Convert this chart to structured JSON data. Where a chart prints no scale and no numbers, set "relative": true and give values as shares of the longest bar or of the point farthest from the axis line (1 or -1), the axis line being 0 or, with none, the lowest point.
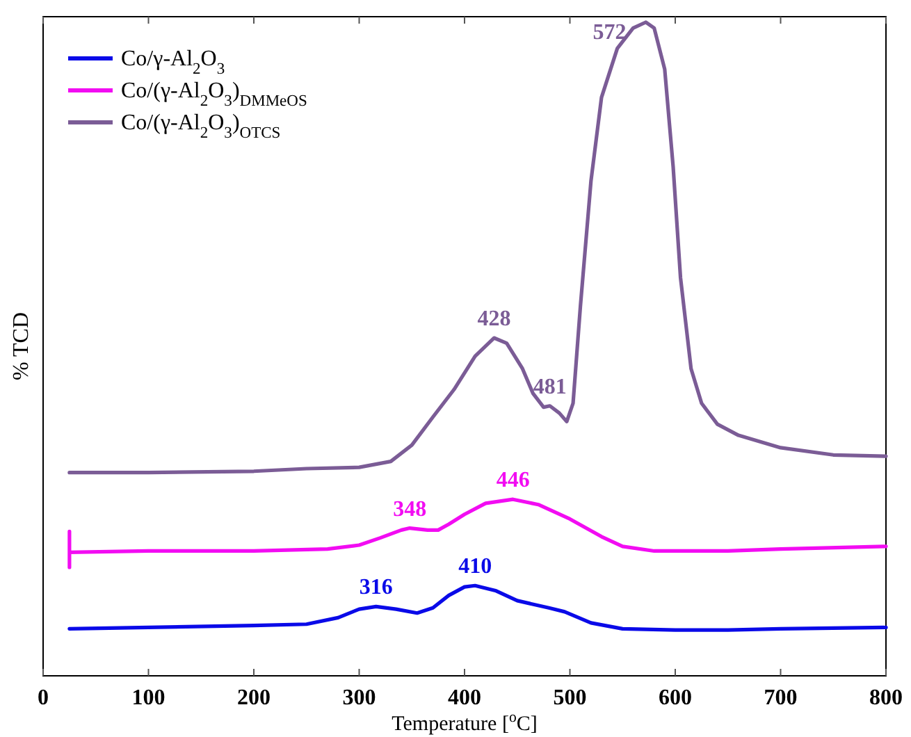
{
  "chart_data": {
    "type": "line",
    "relative": true,
    "xlabel": "Temperature [$^{o}$C]",
    "ylabel": "% TCD",
    "xlim": [
      0,
      800
    ],
    "xticks": [
      0,
      100,
      200,
      300,
      400,
      500,
      600,
      700,
      800
    ],
    "legend": "top left",
    "grid": false,
    "marker": "none",
    "line_style": "solid",
    "series": [
      {
        "name": "Co/γ-Al$_{2}$O$_{3}$",
        "color": "#0a0ae8",
        "x": [
          25,
          100,
          200,
          250,
          280,
          300,
          316,
          335,
          355,
          370,
          385,
          400,
          410,
          430,
          450,
          480,
          495,
          520,
          550,
          600,
          650,
          700,
          800
        ],
        "values": [
          0.072,
          0.074,
          0.077,
          0.079,
          0.089,
          0.102,
          0.106,
          0.102,
          0.096,
          0.104,
          0.123,
          0.136,
          0.138,
          0.13,
          0.115,
          0.104,
          0.098,
          0.081,
          0.072,
          0.07,
          0.07,
          0.072,
          0.074
        ]
      },
      {
        "name": "Co/(γ-Al$_{2}$O$_{3}$)$_{DMMeOS}$",
        "color": "#f20cf2",
        "x": [
          25,
          25,
          25,
          100,
          200,
          270,
          300,
          320,
          340,
          348,
          365,
          375,
          385,
          400,
          420,
          446,
          470,
          500,
          530,
          550,
          580,
          650,
          700,
          800
        ],
        "values": [
          0.221,
          0.166,
          0.189,
          0.191,
          0.191,
          0.194,
          0.2,
          0.211,
          0.223,
          0.226,
          0.223,
          0.223,
          0.232,
          0.247,
          0.264,
          0.27,
          0.262,
          0.24,
          0.213,
          0.198,
          0.191,
          0.191,
          0.194,
          0.198
        ]
      },
      {
        "name": "Co/(γ-Al$_{2}$O$_{3}$)$_{OTCS}$",
        "color": "#7b5c96",
        "x": [
          25,
          100,
          200,
          250,
          300,
          330,
          350,
          370,
          390,
          410,
          428,
          440,
          455,
          465,
          475,
          481,
          490,
          497,
          503,
          510,
          520,
          530,
          545,
          560,
          572,
          580,
          590,
          598,
          605,
          615,
          625,
          640,
          660,
          700,
          750,
          800
        ],
        "values": [
          0.311,
          0.311,
          0.313,
          0.317,
          0.319,
          0.328,
          0.353,
          0.396,
          0.438,
          0.489,
          0.517,
          0.509,
          0.47,
          0.432,
          0.411,
          0.413,
          0.402,
          0.389,
          0.417,
          0.566,
          0.757,
          0.885,
          0.96,
          0.991,
          1,
          0.991,
          0.928,
          0.779,
          0.609,
          0.47,
          0.417,
          0.385,
          0.368,
          0.349,
          0.338,
          0.336
        ]
      }
    ],
    "annotations": [
      {
        "text": "316",
        "x": 316,
        "y": 0.106
      },
      {
        "text": "410",
        "x": 410,
        "y": 0.138
      },
      {
        "text": "348",
        "x": 348,
        "y": 0.226
      },
      {
        "text": "446",
        "x": 446,
        "y": 0.27
      },
      {
        "text": "428",
        "x": 428,
        "y": 0.517
      },
      {
        "text": "481",
        "x": 481,
        "y": 0.413
      },
      {
        "text": "572",
        "x": 572,
        "y": 1
      }
    ]
  }
}
